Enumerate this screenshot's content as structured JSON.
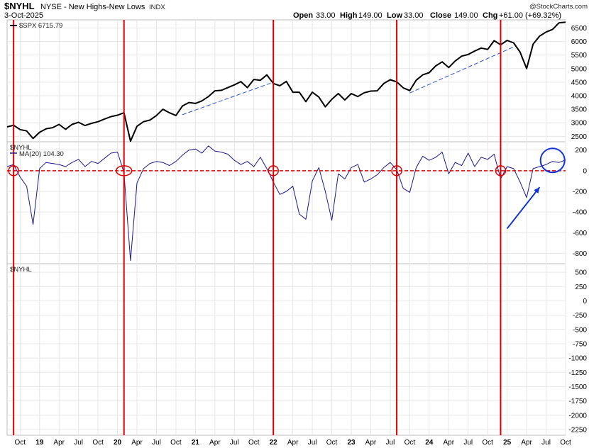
{
  "header": {
    "symbol": "$NYHL",
    "name": "NYSE - New Highs-New Lows",
    "exchange": "INDX",
    "date": "3-Oct-2025",
    "open_label": "Open",
    "open": "33.00",
    "high_label": "High",
    "high": "149.00",
    "low_label": "Low",
    "low": "33.00",
    "close_label": "Close",
    "close": "149.00",
    "chg_label": "Chg",
    "chg": "+61.00 (+69.32%)",
    "watermark": "@StockCharts.com"
  },
  "colors": {
    "spx": "#000000",
    "nyhl_ma": "#1a1a8c",
    "event_lines": "#e00000",
    "zero_line": "#e00000",
    "trend_lines": "#2a4fd8",
    "highlight": "#1133dd",
    "grid": "#e6e6e6"
  },
  "chart_data": [
    {
      "type": "line",
      "panel": "top",
      "legend": "$SPX 6715.79",
      "series_name": "$SPX",
      "last_value": 6715.79,
      "y_ticks": [
        2500,
        3000,
        3500,
        4000,
        4500,
        5000,
        5500,
        6000,
        6500
      ],
      "ylim": [
        2300,
        6800
      ],
      "points": [
        [
          "2018-08",
          2850
        ],
        [
          "2018-09",
          2910
        ],
        [
          "2018-10",
          2750
        ],
        [
          "2018-11",
          2700
        ],
        [
          "2018-12",
          2420
        ],
        [
          "2019-01",
          2650
        ],
        [
          "2019-02",
          2780
        ],
        [
          "2019-03",
          2820
        ],
        [
          "2019-04",
          2940
        ],
        [
          "2019-05",
          2760
        ],
        [
          "2019-06",
          2940
        ],
        [
          "2019-07",
          3020
        ],
        [
          "2019-08",
          2900
        ],
        [
          "2019-09",
          2980
        ],
        [
          "2019-10",
          3040
        ],
        [
          "2019-11",
          3140
        ],
        [
          "2019-12",
          3230
        ],
        [
          "2020-01",
          3280
        ],
        [
          "2020-02",
          3370
        ],
        [
          "2020-03",
          2320
        ],
        [
          "2020-04",
          2870
        ],
        [
          "2020-05",
          3040
        ],
        [
          "2020-06",
          3100
        ],
        [
          "2020-07",
          3270
        ],
        [
          "2020-08",
          3500
        ],
        [
          "2020-09",
          3370
        ],
        [
          "2020-10",
          3270
        ],
        [
          "2020-11",
          3620
        ],
        [
          "2020-12",
          3750
        ],
        [
          "2021-01",
          3715
        ],
        [
          "2021-02",
          3810
        ],
        [
          "2021-03",
          3970
        ],
        [
          "2021-04",
          4180
        ],
        [
          "2021-05",
          4200
        ],
        [
          "2021-06",
          4300
        ],
        [
          "2021-07",
          4400
        ],
        [
          "2021-08",
          4520
        ],
        [
          "2021-09",
          4300
        ],
        [
          "2021-10",
          4600
        ],
        [
          "2021-11",
          4570
        ],
        [
          "2021-12",
          4770
        ],
        [
          "2022-01",
          4450
        ],
        [
          "2022-02",
          4370
        ],
        [
          "2022-03",
          4530
        ],
        [
          "2022-04",
          4130
        ],
        [
          "2022-05",
          4130
        ],
        [
          "2022-06",
          3780
        ],
        [
          "2022-07",
          4130
        ],
        [
          "2022-08",
          3950
        ],
        [
          "2022-09",
          3590
        ],
        [
          "2022-10",
          3870
        ],
        [
          "2022-11",
          4080
        ],
        [
          "2022-12",
          3840
        ],
        [
          "2023-01",
          4080
        ],
        [
          "2023-02",
          3970
        ],
        [
          "2023-03",
          4110
        ],
        [
          "2023-04",
          4170
        ],
        [
          "2023-05",
          4180
        ],
        [
          "2023-06",
          4450
        ],
        [
          "2023-07",
          4590
        ],
        [
          "2023-08",
          4510
        ],
        [
          "2023-09",
          4290
        ],
        [
          "2023-10",
          4190
        ],
        [
          "2023-11",
          4570
        ],
        [
          "2023-12",
          4770
        ],
        [
          "2024-01",
          4850
        ],
        [
          "2024-02",
          5100
        ],
        [
          "2024-03",
          5250
        ],
        [
          "2024-04",
          5040
        ],
        [
          "2024-05",
          5280
        ],
        [
          "2024-06",
          5460
        ],
        [
          "2024-07",
          5520
        ],
        [
          "2024-08",
          5650
        ],
        [
          "2024-09",
          5760
        ],
        [
          "2024-10",
          5710
        ],
        [
          "2024-11",
          6030
        ],
        [
          "2024-12",
          5880
        ],
        [
          "2025-01",
          6040
        ],
        [
          "2025-02",
          5950
        ],
        [
          "2025-03",
          5610
        ],
        [
          "2025-04",
          5000
        ],
        [
          "2025-05",
          5900
        ],
        [
          "2025-06",
          6200
        ],
        [
          "2025-07",
          6350
        ],
        [
          "2025-08",
          6450
        ],
        [
          "2025-09",
          6690
        ],
        [
          "2025-10",
          6715.79
        ]
      ],
      "trend_lines": [
        [
          [
            "2020-11",
            3300
          ],
          [
            "2022-01",
            4500
          ]
        ],
        [
          [
            "2023-10",
            4100
          ],
          [
            "2025-02",
            5800
          ]
        ]
      ]
    },
    {
      "type": "line",
      "panel": "middle",
      "legend_symbol": "$NYHL",
      "legend": "MA(20) 104.30",
      "series_name": "MA(20)",
      "last_value": 104.3,
      "y_ticks": [
        200,
        0,
        -200,
        -400,
        -600,
        -800
      ],
      "ylim": [
        -900,
        280
      ],
      "points": [
        [
          "2018-08",
          40
        ],
        [
          "2018-09",
          60
        ],
        [
          "2018-10",
          -60
        ],
        [
          "2018-11",
          -150
        ],
        [
          "2018-12",
          -520
        ],
        [
          "2019-01",
          20
        ],
        [
          "2019-02",
          80
        ],
        [
          "2019-03",
          70
        ],
        [
          "2019-04",
          60
        ],
        [
          "2019-05",
          40
        ],
        [
          "2019-06",
          80
        ],
        [
          "2019-07",
          110
        ],
        [
          "2019-08",
          40
        ],
        [
          "2019-09",
          90
        ],
        [
          "2019-10",
          70
        ],
        [
          "2019-11",
          120
        ],
        [
          "2019-12",
          170
        ],
        [
          "2020-01",
          180
        ],
        [
          "2020-02",
          -20
        ],
        [
          "2020-03",
          -870
        ],
        [
          "2020-04",
          -120
        ],
        [
          "2020-05",
          20
        ],
        [
          "2020-06",
          70
        ],
        [
          "2020-07",
          90
        ],
        [
          "2020-08",
          80
        ],
        [
          "2020-09",
          50
        ],
        [
          "2020-10",
          90
        ],
        [
          "2020-11",
          150
        ],
        [
          "2020-12",
          200
        ],
        [
          "2021-01",
          210
        ],
        [
          "2021-02",
          170
        ],
        [
          "2021-03",
          240
        ],
        [
          "2021-04",
          190
        ],
        [
          "2021-05",
          180
        ],
        [
          "2021-06",
          160
        ],
        [
          "2021-07",
          100
        ],
        [
          "2021-08",
          60
        ],
        [
          "2021-09",
          90
        ],
        [
          "2021-10",
          40
        ],
        [
          "2021-11",
          130
        ],
        [
          "2021-12",
          20
        ],
        [
          "2022-01",
          -110
        ],
        [
          "2022-02",
          -230
        ],
        [
          "2022-03",
          -200
        ],
        [
          "2022-04",
          -150
        ],
        [
          "2022-05",
          -420
        ],
        [
          "2022-06",
          -470
        ],
        [
          "2022-07",
          -100
        ],
        [
          "2022-08",
          30
        ],
        [
          "2022-09",
          -200
        ],
        [
          "2022-10",
          -480
        ],
        [
          "2022-11",
          -30
        ],
        [
          "2022-12",
          -80
        ],
        [
          "2023-01",
          30
        ],
        [
          "2023-02",
          60
        ],
        [
          "2023-03",
          -110
        ],
        [
          "2023-04",
          -80
        ],
        [
          "2023-05",
          -40
        ],
        [
          "2023-06",
          30
        ],
        [
          "2023-07",
          80
        ],
        [
          "2023-08",
          10
        ],
        [
          "2023-09",
          -170
        ],
        [
          "2023-10",
          -210
        ],
        [
          "2023-11",
          30
        ],
        [
          "2023-12",
          140
        ],
        [
          "2024-01",
          100
        ],
        [
          "2024-02",
          130
        ],
        [
          "2024-03",
          180
        ],
        [
          "2024-04",
          -30
        ],
        [
          "2024-05",
          80
        ],
        [
          "2024-06",
          50
        ],
        [
          "2024-07",
          170
        ],
        [
          "2024-08",
          40
        ],
        [
          "2024-09",
          130
        ],
        [
          "2024-10",
          110
        ],
        [
          "2024-11",
          160
        ],
        [
          "2024-12",
          -80
        ],
        [
          "2025-01",
          40
        ],
        [
          "2025-02",
          20
        ],
        [
          "2025-03",
          -110
        ],
        [
          "2025-04",
          -260
        ],
        [
          "2025-05",
          20
        ],
        [
          "2025-06",
          40
        ],
        [
          "2025-07",
          60
        ],
        [
          "2025-08",
          90
        ],
        [
          "2025-09",
          80
        ],
        [
          "2025-10",
          104.3
        ]
      ]
    },
    {
      "type": "line",
      "panel": "bottom",
      "legend_symbol": "$NYHL",
      "y_ticks": [
        500,
        250,
        0,
        -250,
        -500,
        -750,
        -1000,
        -1250,
        -1500,
        -1750,
        -2000,
        -2250
      ],
      "ylim": [
        -2350,
        650
      ],
      "points": []
    }
  ],
  "x_axis": {
    "labels": [
      {
        "text": "Oct",
        "date": "2018-10"
      },
      {
        "text": "19",
        "date": "2019-01"
      },
      {
        "text": "Apr",
        "date": "2019-04"
      },
      {
        "text": "Jul",
        "date": "2019-07"
      },
      {
        "text": "Oct",
        "date": "2019-10"
      },
      {
        "text": "20",
        "date": "2020-01"
      },
      {
        "text": "Apr",
        "date": "2020-04"
      },
      {
        "text": "Jul",
        "date": "2020-07"
      },
      {
        "text": "Oct",
        "date": "2020-10"
      },
      {
        "text": "21",
        "date": "2021-01"
      },
      {
        "text": "Apr",
        "date": "2021-04"
      },
      {
        "text": "Jul",
        "date": "2021-07"
      },
      {
        "text": "Oct",
        "date": "2021-10"
      },
      {
        "text": "22",
        "date": "2022-01"
      },
      {
        "text": "Apr",
        "date": "2022-04"
      },
      {
        "text": "Jul",
        "date": "2022-07"
      },
      {
        "text": "Oct",
        "date": "2022-10"
      },
      {
        "text": "23",
        "date": "2023-01"
      },
      {
        "text": "Apr",
        "date": "2023-04"
      },
      {
        "text": "Jul",
        "date": "2023-07"
      },
      {
        "text": "Oct",
        "date": "2023-10"
      },
      {
        "text": "24",
        "date": "2024-01"
      },
      {
        "text": "Apr",
        "date": "2024-04"
      },
      {
        "text": "Jul",
        "date": "2024-07"
      },
      {
        "text": "Oct",
        "date": "2024-10"
      },
      {
        "text": "25",
        "date": "2025-01"
      },
      {
        "text": "Apr",
        "date": "2025-04"
      },
      {
        "text": "Jul",
        "date": "2025-07"
      },
      {
        "text": "Oct",
        "date": "2025-10"
      }
    ],
    "range": [
      "2018-08",
      "2025-10"
    ]
  },
  "annotations": {
    "vertical_lines": [
      "2018-09",
      "2020-02",
      "2022-01",
      "2023-08",
      "2024-12"
    ],
    "circles": [
      {
        "date": "2018-09",
        "value": 0
      },
      {
        "date": "2020-02",
        "value": 0
      },
      {
        "date": "2022-01",
        "value": 0
      },
      {
        "date": "2023-08",
        "value": 0
      },
      {
        "date": "2024-12",
        "value": 0
      }
    ],
    "highlight": {
      "date": "2025-08",
      "value": 100
    },
    "arrow": {
      "from": {
        "date": "2025-01",
        "value": -560
      },
      "to": {
        "date": "2025-06",
        "value": -160
      }
    }
  }
}
